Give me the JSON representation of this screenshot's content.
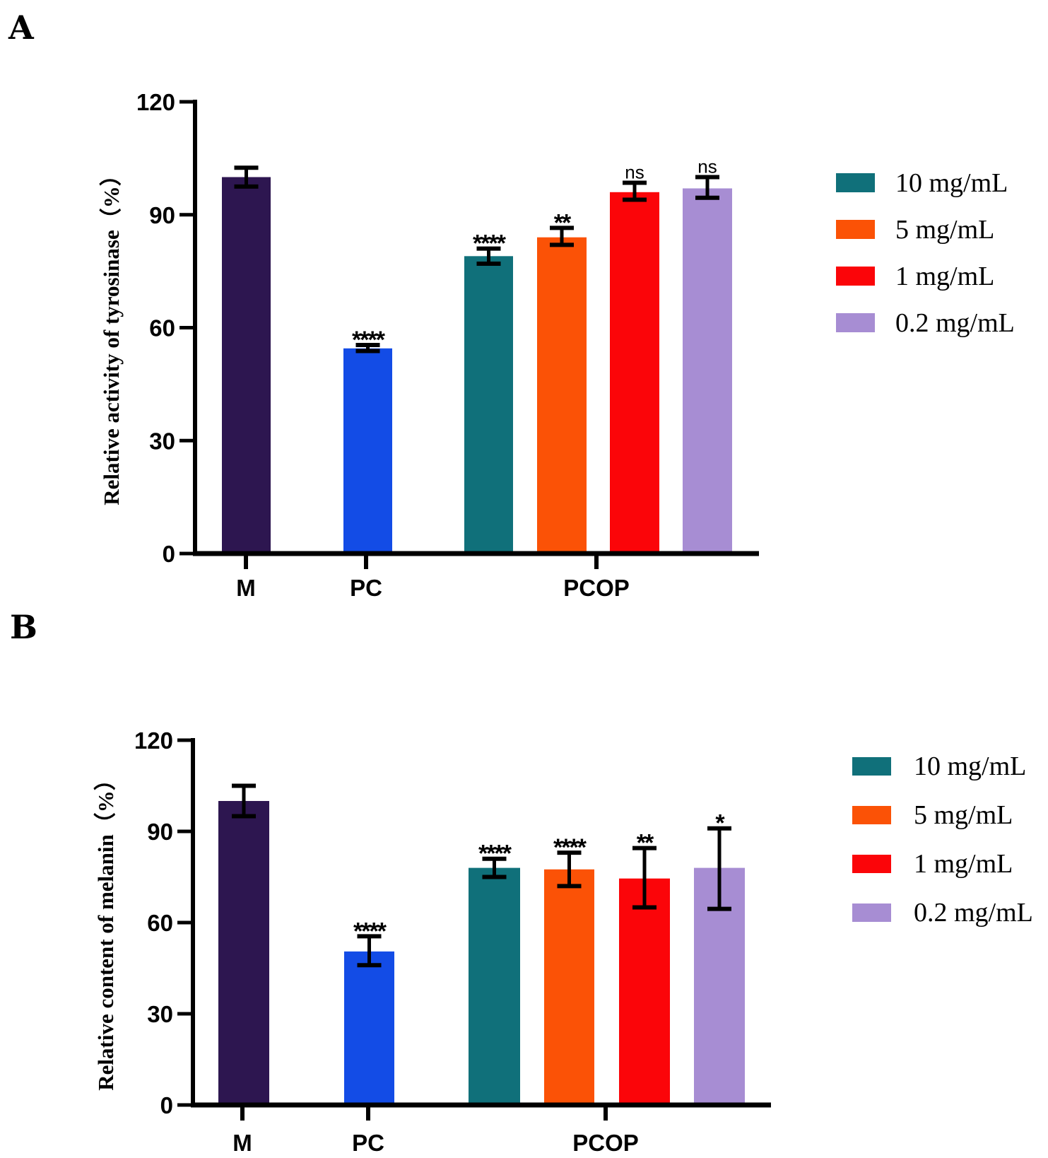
{
  "chart_data": [
    {
      "type": "bar",
      "panel_label": "A",
      "title": "",
      "ylabel": "Relative activity of tyrosinase（%）",
      "xlabel": "",
      "ylim": [
        0,
        120
      ],
      "yticks": [
        "0",
        "30",
        "60",
        "90",
        "120"
      ],
      "groups": [
        "M",
        "PC",
        "PCOP"
      ],
      "legend": {
        "placement": "right",
        "entries": [
          "10 mg/mL",
          "5 mg/mL",
          "1 mg/mL",
          "0.2 mg/mL"
        ]
      },
      "bars": [
        {
          "group": "M",
          "name": "M",
          "value": 100,
          "err_low": 97.5,
          "err_high": 102.5,
          "sig": "",
          "color": "#2d1650"
        },
        {
          "group": "PC",
          "name": "PC",
          "value": 54.5,
          "err_low": 53.8,
          "err_high": 55.4,
          "sig": "****",
          "color": "#134ce6"
        },
        {
          "group": "PCOP",
          "name": "10 mg/mL",
          "value": 79,
          "err_low": 77,
          "err_high": 81,
          "sig": "****",
          "color": "#10707a"
        },
        {
          "group": "PCOP",
          "name": "5 mg/mL",
          "value": 84,
          "err_low": 82,
          "err_high": 86.5,
          "sig": "**",
          "color": "#fb5206"
        },
        {
          "group": "PCOP",
          "name": "1 mg/mL",
          "value": 96,
          "err_low": 94,
          "err_high": 98.5,
          "sig": "ns",
          "color": "#fb0509"
        },
        {
          "group": "PCOP",
          "name": "0.2 mg/mL",
          "value": 97,
          "err_low": 94.5,
          "err_high": 100,
          "sig": "ns",
          "color": "#a78dd3"
        }
      ]
    },
    {
      "type": "bar",
      "panel_label": "B",
      "title": "",
      "ylabel": "Relative content of melanin（%）",
      "xlabel": "",
      "ylim": [
        0,
        120
      ],
      "yticks": [
        "0",
        "30",
        "60",
        "90",
        "120"
      ],
      "groups": [
        "M",
        "PC",
        "PCOP"
      ],
      "legend": {
        "placement": "right",
        "entries": [
          "10 mg/mL",
          "5 mg/mL",
          "1 mg/mL",
          "0.2 mg/mL"
        ]
      },
      "bars": [
        {
          "group": "M",
          "name": "M",
          "value": 100,
          "err_low": 95,
          "err_high": 105,
          "sig": "",
          "color": "#2d1650"
        },
        {
          "group": "PC",
          "name": "PC",
          "value": 50.5,
          "err_low": 46,
          "err_high": 55.5,
          "sig": "****",
          "color": "#134ce6"
        },
        {
          "group": "PCOP",
          "name": "10 mg/mL",
          "value": 78,
          "err_low": 75,
          "err_high": 81,
          "sig": "****",
          "color": "#10707a"
        },
        {
          "group": "PCOP",
          "name": "5 mg/mL",
          "value": 77.5,
          "err_low": 72,
          "err_high": 83,
          "sig": "****",
          "color": "#fb5206"
        },
        {
          "group": "PCOP",
          "name": "1 mg/mL",
          "value": 74.5,
          "err_low": 65,
          "err_high": 84.5,
          "sig": "**",
          "color": "#fb0509"
        },
        {
          "group": "PCOP",
          "name": "0.2 mg/mL",
          "value": 78,
          "err_low": 64.5,
          "err_high": 91,
          "sig": "*",
          "color": "#a78dd3"
        }
      ]
    }
  ]
}
